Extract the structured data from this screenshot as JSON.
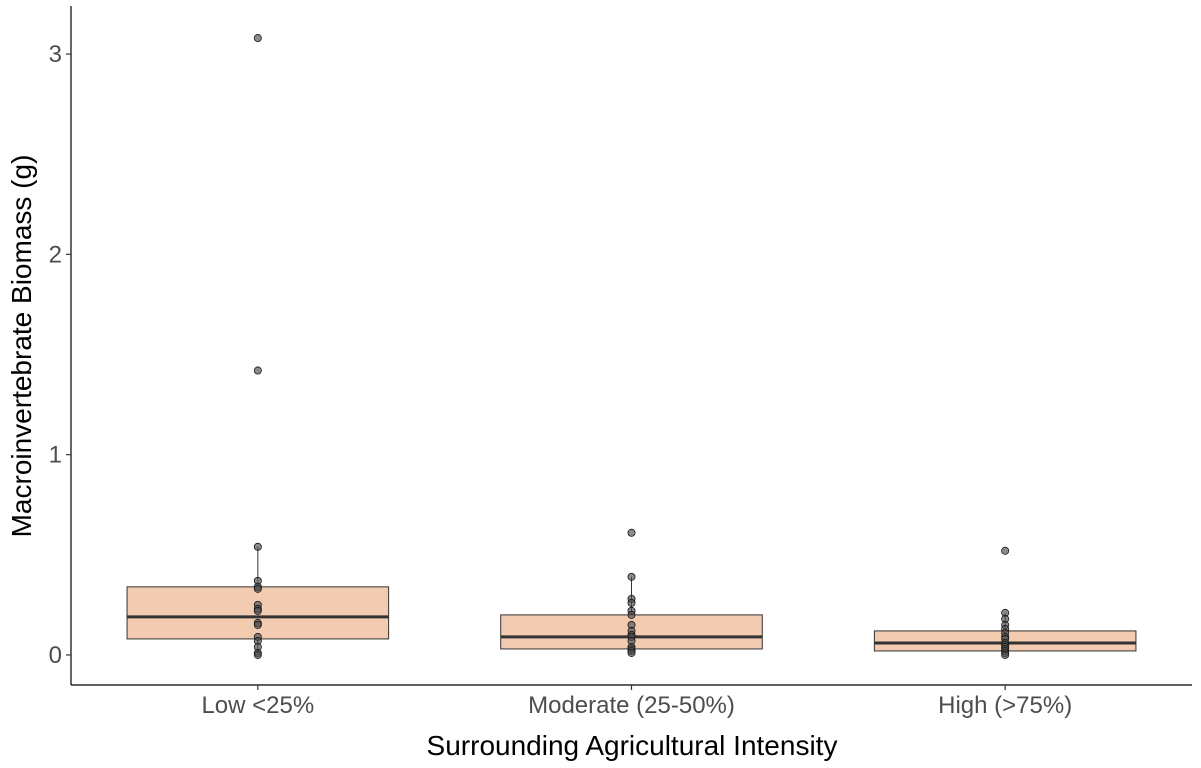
{
  "chart_data": {
    "type": "boxplot",
    "xlabel": "Surrounding Agricultural Intensity",
    "ylabel": "Macroinvertebrate Biomass (g)",
    "ylim": [
      -0.15,
      3.24
    ],
    "yticks": [
      0,
      1,
      2,
      3
    ],
    "grid": false,
    "legend": "none",
    "categories": [
      "Low <25%",
      "Moderate (25-50%)",
      "High (>75%)"
    ],
    "box_fill": "#f2cbb0",
    "point_color": "#4d4d4d",
    "series": [
      {
        "category": "Low <25%",
        "q1": 0.08,
        "median": 0.19,
        "q3": 0.34,
        "whisker_low": 0.0,
        "whisker_high": 0.54,
        "points": [
          3.08,
          1.42,
          0.54,
          0.37,
          0.34,
          0.33,
          0.25,
          0.23,
          0.22,
          0.16,
          0.15,
          0.09,
          0.07,
          0.04,
          0.01,
          0.0
        ]
      },
      {
        "category": "Moderate (25-50%)",
        "q1": 0.03,
        "median": 0.09,
        "q3": 0.2,
        "whisker_low": 0.0,
        "whisker_high": 0.39,
        "points": [
          0.61,
          0.39,
          0.28,
          0.26,
          0.22,
          0.2,
          0.15,
          0.12,
          0.1,
          0.09,
          0.07,
          0.04,
          0.03,
          0.02,
          0.01
        ]
      },
      {
        "category": "High (>75%)",
        "q1": 0.02,
        "median": 0.06,
        "q3": 0.12,
        "whisker_low": 0.0,
        "whisker_high": 0.21,
        "points": [
          0.52,
          0.21,
          0.18,
          0.15,
          0.13,
          0.11,
          0.09,
          0.08,
          0.06,
          0.05,
          0.04,
          0.03,
          0.02,
          0.01,
          0.0
        ]
      }
    ]
  }
}
